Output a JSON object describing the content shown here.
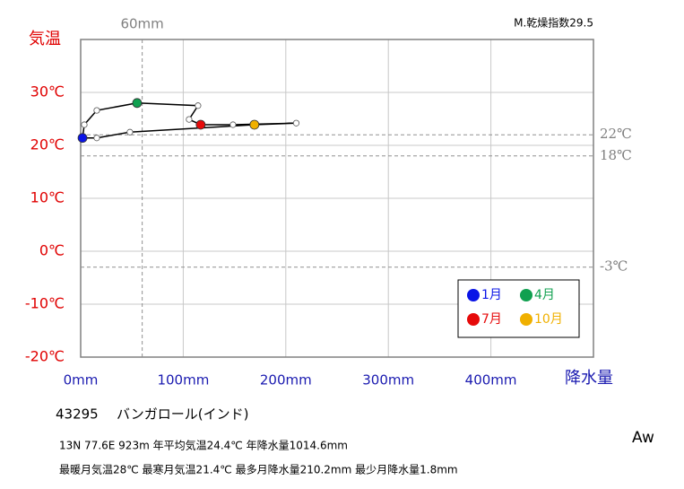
{
  "chart_data": {
    "type": "climograph",
    "y_label": "気温",
    "x_label": "降水量",
    "index_label": "M.乾燥指数29.5",
    "x": [
      1.8,
      3.5,
      15.7,
      55,
      114.4,
      105.7,
      117,
      148.5,
      210.2,
      169.4,
      48,
      15.7
    ],
    "values": [
      21.4,
      23.9,
      26.6,
      28,
      27.5,
      24.9,
      23.9,
      23.9,
      24.2,
      23.9,
      22.5,
      21.4
    ],
    "point_colors": [
      "#0a14e6",
      "#ffffff",
      "#ffffff",
      "#10a050",
      "#ffffff",
      "#ffffff",
      "#e60a0a",
      "#ffffff",
      "#ffffff",
      "#f0b000",
      "#ffffff",
      "#ffffff"
    ],
    "line_color": "#000000",
    "xlim": [
      0,
      500
    ],
    "ylim": [
      -20,
      40
    ],
    "xticks": [
      {
        "value": 0,
        "label": "0mm"
      },
      {
        "value": 100,
        "label": "100mm"
      },
      {
        "value": 200,
        "label": "200mm"
      },
      {
        "value": 300,
        "label": "300mm"
      },
      {
        "value": 400,
        "label": "400mm"
      }
    ],
    "yticks": [
      {
        "value": -20,
        "label": "-20℃"
      },
      {
        "value": -10,
        "label": "-10℃"
      },
      {
        "value": 0,
        "label": "0℃"
      },
      {
        "value": 10,
        "label": "10℃"
      },
      {
        "value": 20,
        "label": "20℃"
      },
      {
        "value": 30,
        "label": "30℃"
      }
    ],
    "grid": true,
    "ref_y": [
      {
        "value": 22,
        "label": "22℃"
      },
      {
        "value": 18,
        "label": "18℃"
      },
      {
        "value": -3,
        "label": "-3℃"
      }
    ],
    "ref_x": [
      {
        "value": 60,
        "label": "60mm"
      }
    ],
    "legend": [
      {
        "label": "1月",
        "color": "#0a14e6"
      },
      {
        "label": "4月",
        "color": "#10a050"
      },
      {
        "label": "7月",
        "color": "#e60a0a"
      },
      {
        "label": "10月",
        "color": "#f0b000"
      }
    ],
    "legend_position": "lower right"
  },
  "station": {
    "id": "43295",
    "name": "バンガロール(インド)",
    "line1": "13N  77.6E 923m  年平均気温24.4℃ 年降水量1014.6mm",
    "line2": "最暖月気温28℃ 最寒月気温21.4℃ 最多月降水量210.2mm 最少月降水量1.8mm",
    "climate": "Aw"
  }
}
